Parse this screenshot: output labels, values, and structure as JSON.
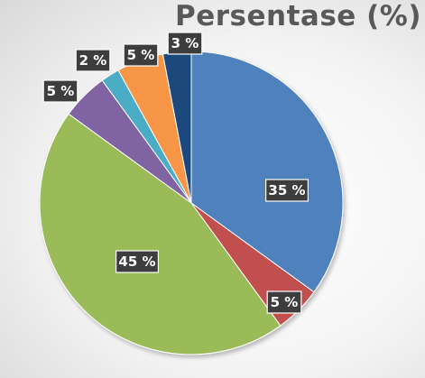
{
  "chart_data": {
    "type": "pie",
    "title": "Persentase (%)",
    "series": [
      {
        "value": 35,
        "label": "35 %",
        "color": "#4f81bd"
      },
      {
        "value": 5,
        "label": "5 %",
        "color": "#c0504d"
      },
      {
        "value": 45,
        "label": "45 %",
        "color": "#9bbb59"
      },
      {
        "value": 5,
        "label": "5 %",
        "color": "#8064a2"
      },
      {
        "value": 2,
        "label": "2 %",
        "color": "#4bacc6"
      },
      {
        "value": 5,
        "label": "5 %",
        "color": "#f79646"
      },
      {
        "value": 3,
        "label": "3 %",
        "color": "#1f497d"
      }
    ],
    "start_angle_deg": 0,
    "direction": "clockwise",
    "legend": "none"
  }
}
